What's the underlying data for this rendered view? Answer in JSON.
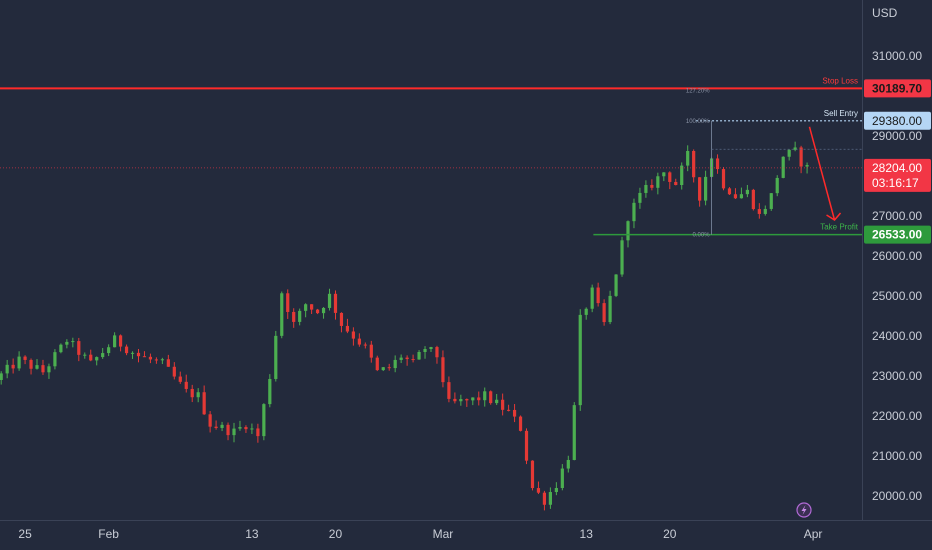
{
  "currency": "USD",
  "colors": {
    "background": "#232a3c",
    "up": "#26a69a",
    "down": "#ef5350",
    "candle_up": "#4caf50",
    "candle_down": "#e53935",
    "stop_loss": "#ff2a2a",
    "sell_entry": "#b5d6f5",
    "take_profit": "#2e9a3c",
    "current_price": "#f23645",
    "axis_text": "#c9cdd6"
  },
  "chart_data": {
    "type": "candlestick",
    "y_ticks": [
      "31000.00",
      "29000.00",
      "27000.00",
      "26000.00",
      "25000.00",
      "24000.00",
      "23000.00",
      "22000.00",
      "21000.00",
      "20000.00"
    ],
    "x_ticks": [
      {
        "label": "25",
        "day": -7
      },
      {
        "label": "Feb",
        "day": 0
      },
      {
        "label": "13",
        "day": 12
      },
      {
        "label": "20",
        "day": 19
      },
      {
        "label": "Mar",
        "day": 28
      },
      {
        "label": "13",
        "day": 40
      },
      {
        "label": "20",
        "day": 47
      },
      {
        "label": "Apr",
        "day": 59
      }
    ],
    "ylim": [
      19400,
      32400
    ],
    "xlim": [
      -9.1,
      63.1
    ],
    "levels": {
      "stop_loss": {
        "label": "Stop Loss",
        "value": 30189.7,
        "value_label": "30189.70"
      },
      "sell_entry": {
        "label": "Sell Entry",
        "value": 29380.0,
        "value_label": "29380.00"
      },
      "take_profit": {
        "label": "Take Profit",
        "value": 26533.0,
        "value_label": "26533.00"
      },
      "current": {
        "value": 28204.0,
        "value_label": "28204.00",
        "countdown": "03:16:17"
      }
    },
    "fib_labels": {
      "top": "100.00%",
      "ext": "127.20%",
      "bottom": "0.00%"
    },
    "anchors": [
      [
        -9,
        22900
      ],
      [
        -7,
        23400
      ],
      [
        -5,
        23100
      ],
      [
        -3,
        23900
      ],
      [
        -1,
        23300
      ],
      [
        1,
        23900
      ],
      [
        3,
        23500
      ],
      [
        5,
        23300
      ],
      [
        7,
        22600
      ],
      [
        8,
        22500
      ],
      [
        9,
        21800
      ],
      [
        11,
        21600
      ],
      [
        12,
        21800
      ],
      [
        13,
        21500
      ],
      [
        14,
        23000
      ],
      [
        15,
        25100
      ],
      [
        16,
        24300
      ],
      [
        17,
        24800
      ],
      [
        18,
        24600
      ],
      [
        19,
        25000
      ],
      [
        20,
        24300
      ],
      [
        21,
        24000
      ],
      [
        22,
        23700
      ],
      [
        23,
        23100
      ],
      [
        24,
        23200
      ],
      [
        25,
        23500
      ],
      [
        26,
        23300
      ],
      [
        27,
        23700
      ],
      [
        28,
        23500
      ],
      [
        29,
        22300
      ],
      [
        31,
        22400
      ],
      [
        32,
        22500
      ],
      [
        33,
        22300
      ],
      [
        34,
        22100
      ],
      [
        35,
        21700
      ],
      [
        36,
        20200
      ],
      [
        37,
        19900
      ],
      [
        38,
        20300
      ],
      [
        39,
        21000
      ],
      [
        39.5,
        22200
      ],
      [
        40,
        24400
      ],
      [
        41,
        25100
      ],
      [
        42,
        24300
      ],
      [
        43,
        25600
      ],
      [
        44,
        27000
      ],
      [
        45,
        27500
      ],
      [
        46,
        27800
      ],
      [
        47,
        28100
      ],
      [
        48,
        27800
      ],
      [
        49,
        28500
      ],
      [
        50,
        27500
      ],
      [
        51,
        28500
      ],
      [
        52,
        27800
      ],
      [
        53,
        27500
      ],
      [
        54,
        27600
      ],
      [
        55,
        27000
      ],
      [
        56,
        27500
      ],
      [
        57,
        28500
      ],
      [
        58,
        28600
      ],
      [
        58.8,
        28200
      ]
    ]
  }
}
